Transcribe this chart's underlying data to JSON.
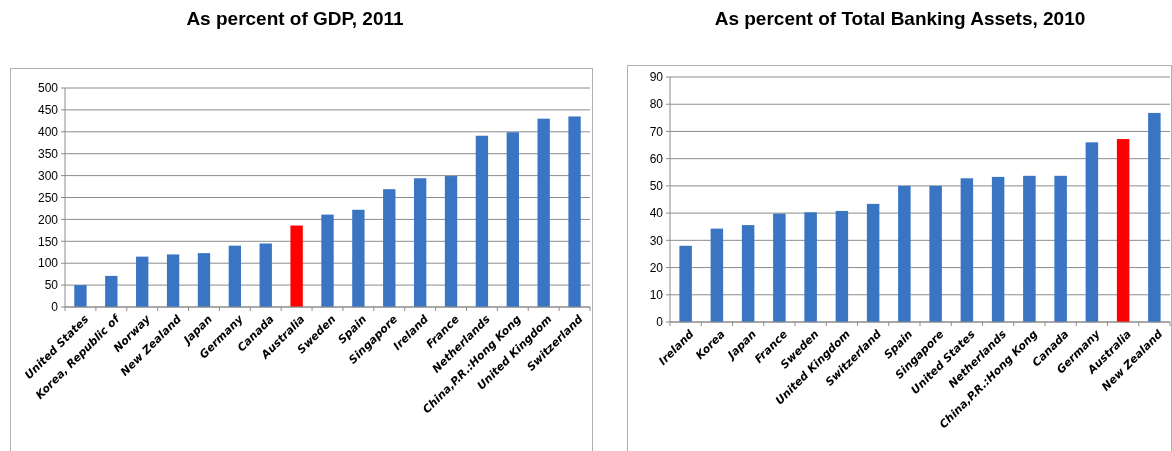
{
  "chart_data": [
    {
      "type": "bar",
      "title": "As percent of GDP, 2011",
      "categories": [
        "United States",
        "Korea, Republic of",
        "Norway",
        "New Zealand",
        "Japan",
        "Germany",
        "Canada",
        "Australia",
        "Sweden",
        "Spain",
        "Singapore",
        "Ireland",
        "France",
        "Netherlands",
        "China,P.R.:Hong Kong",
        "United Kingdom",
        "Switzerland"
      ],
      "values": [
        50,
        71,
        115,
        120,
        123,
        140,
        145,
        186,
        211,
        222,
        269,
        294,
        299,
        391,
        399,
        430,
        435
      ],
      "colors": [
        "#3a75c4",
        "#3a75c4",
        "#3a75c4",
        "#3a75c4",
        "#3a75c4",
        "#3a75c4",
        "#3a75c4",
        "#ff0000",
        "#3a75c4",
        "#3a75c4",
        "#3a75c4",
        "#3a75c4",
        "#3a75c4",
        "#3a75c4",
        "#3a75c4",
        "#3a75c4",
        "#3a75c4"
      ],
      "ylim": [
        0,
        500
      ],
      "yticks": [
        0,
        50,
        100,
        150,
        200,
        250,
        300,
        350,
        400,
        450,
        500
      ],
      "grid": "y"
    },
    {
      "type": "bar",
      "title": "As percent of Total Banking Assets, 2010",
      "categories": [
        "Ireland",
        "Korea",
        "Japan",
        "France",
        "Sweden",
        "United Kingdom",
        "Switzerland",
        "Spain",
        "Singapore",
        "United States",
        "Netherlands",
        "China,P.R.:Hong Kong",
        "Canada",
        "Germany",
        "Australia",
        "New Zealand"
      ],
      "values": [
        28,
        34.3,
        35.6,
        39.8,
        40.3,
        40.8,
        43.4,
        50,
        50,
        52.8,
        53.3,
        53.7,
        53.7,
        66,
        67.2,
        76.8
      ],
      "colors": [
        "#3a75c4",
        "#3a75c4",
        "#3a75c4",
        "#3a75c4",
        "#3a75c4",
        "#3a75c4",
        "#3a75c4",
        "#3a75c4",
        "#3a75c4",
        "#3a75c4",
        "#3a75c4",
        "#3a75c4",
        "#3a75c4",
        "#3a75c4",
        "#ff0000",
        "#3a75c4"
      ],
      "ylim": [
        0,
        90
      ],
      "yticks": [
        0,
        10,
        20,
        30,
        40,
        50,
        60,
        70,
        80,
        90
      ],
      "grid": "y"
    }
  ]
}
